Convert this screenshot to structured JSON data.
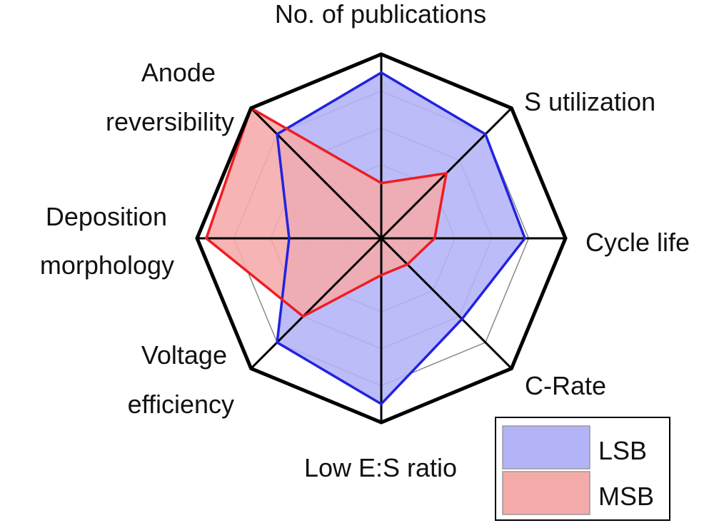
{
  "chart_data": {
    "type": "radar",
    "axes": [
      [
        "No. of publications"
      ],
      [
        "S utilization"
      ],
      [
        "Cycle life"
      ],
      [
        "C-Rate"
      ],
      [
        "Low E:S ratio"
      ],
      [
        "Voltage",
        "efficiency"
      ],
      [
        "Deposition",
        "morphology"
      ],
      [
        "Anode",
        "reversibility"
      ]
    ],
    "rmax": 1.0,
    "rings": 5,
    "series": [
      {
        "name": "LSB",
        "values": [
          0.9,
          0.8,
          0.78,
          0.62,
          0.9,
          0.8,
          0.5,
          0.8
        ],
        "fill": "#b3b3f7",
        "stroke": "#2222e0"
      },
      {
        "name": "MSB",
        "values": [
          0.3,
          0.5,
          0.29,
          0.2,
          0.2,
          0.6,
          0.95,
          1.0
        ],
        "fill": "#f5aaaa",
        "stroke": "#ee1c24"
      }
    ],
    "legend_position": "bottom-right"
  }
}
